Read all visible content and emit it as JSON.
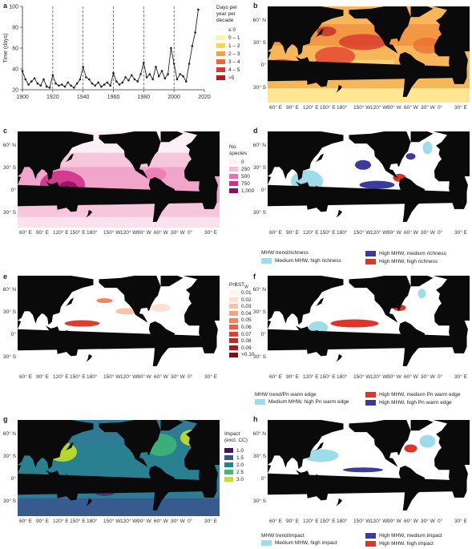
{
  "panels": {
    "a": "a",
    "b": "b",
    "c": "c",
    "d": "d",
    "e": "e",
    "f": "f",
    "g": "g",
    "h": "h"
  },
  "map_lat_labels": [
    "60° N",
    "30° S",
    "0°",
    "30° S"
  ],
  "map_lon_labels": [
    "60° E",
    "90° E",
    "120° E",
    "150° E",
    "180°",
    "150° W",
    "120° W",
    "90° W",
    "60° W",
    "30° W",
    "0°",
    "30° E"
  ],
  "legend_b": {
    "title": "Days per\nyear per\ndecade",
    "items": [
      {
        "label": "≤ 0",
        "color": "#fffbe8"
      },
      {
        "label": "0 – 1",
        "color": "#fff3a0"
      },
      {
        "label": "1 – 2",
        "color": "#f8d84a"
      },
      {
        "label": "2 – 3",
        "color": "#f3a43a"
      },
      {
        "label": "3 – 4",
        "color": "#e8692e"
      },
      {
        "label": "4 – 5",
        "color": "#d8372a"
      },
      {
        "label": ">5",
        "color": "#b01a20"
      }
    ]
  },
  "legend_c": {
    "title": "No.\nspecies",
    "items": [
      {
        "label": "0",
        "color": "#fdf0f5"
      },
      {
        "label": "250",
        "color": "#f7bcd6"
      },
      {
        "label": "500",
        "color": "#ee6fb0"
      },
      {
        "label": "750",
        "color": "#cf2f8c"
      },
      {
        "label": "1,000",
        "color": "#8c0f5a"
      }
    ]
  },
  "legend_e": {
    "title": "PrBST",
    "title_sub": "W",
    "items": [
      {
        "label": "0.01",
        "color": "#fff4ef"
      },
      {
        "label": "0.02",
        "color": "#fde0d2"
      },
      {
        "label": "0.03",
        "color": "#fbc2aa"
      },
      {
        "label": "0.04",
        "color": "#f8a283"
      },
      {
        "label": "0.05",
        "color": "#f3825f"
      },
      {
        "label": "0.06",
        "color": "#ea6046"
      },
      {
        "label": "0.07",
        "color": "#db3f33"
      },
      {
        "label": "0.08",
        "color": "#c4272a"
      },
      {
        "label": "0.09",
        "color": "#a81a22"
      },
      {
        "label": ">0.10",
        "color": "#7e0e18"
      }
    ]
  },
  "legend_g": {
    "title": "Impact\n(excl. CC)",
    "items": [
      {
        "label": "1.0",
        "color": "#46106f"
      },
      {
        "label": "1.5",
        "color": "#3a548c"
      },
      {
        "label": "2.0",
        "color": "#26838e"
      },
      {
        "label": "2.5",
        "color": "#3bbb74"
      },
      {
        "label": "3.0",
        "color": "#c8e020"
      }
    ]
  },
  "legend_d": {
    "title": "MHW trend/richness",
    "items": [
      {
        "label": "Medium MHW, high richness",
        "color": "#9fdcea"
      },
      {
        "label": "High MHW, medium richness",
        "color": "#3b3b9a"
      },
      {
        "label": "High MHW, high richness",
        "color": "#e0332a"
      }
    ]
  },
  "legend_f": {
    "title": "MHW trend/Pn warm edge",
    "items": [
      {
        "label": "Medium MHW, high Pn warm edge",
        "color": "#9fdcea"
      },
      {
        "label": "High MHW, medium Pn warm edge",
        "color": "#e0332a"
      },
      {
        "label": "High MHW, high Pn warm edge",
        "color": "#3b3b9a"
      }
    ]
  },
  "legend_h": {
    "title": "MHW trend/impact",
    "items": [
      {
        "label": "Medium MHW, high impact",
        "color": "#9fdcea"
      },
      {
        "label": "High MHW, medium impact",
        "color": "#3b3b9a"
      },
      {
        "label": "High MHW, high impact",
        "color": "#e0332a"
      }
    ]
  },
  "chart_data": {
    "type": "line",
    "ylabel": "Time (days)",
    "xlim": [
      1900,
      2020
    ],
    "ylim": [
      20,
      100
    ],
    "xticks": [
      1900,
      1920,
      1940,
      1960,
      1980,
      2000,
      2020
    ],
    "yticks": [
      20,
      40,
      60,
      80,
      100
    ],
    "decade_lines": [
      1900,
      1920,
      1940,
      1960,
      1980,
      2000
    ],
    "x": [
      1900,
      1902,
      1904,
      1906,
      1908,
      1910,
      1912,
      1914,
      1916,
      1918,
      1920,
      1922,
      1924,
      1926,
      1928,
      1930,
      1932,
      1934,
      1936,
      1938,
      1940,
      1942,
      1944,
      1946,
      1948,
      1950,
      1952,
      1954,
      1956,
      1958,
      1960,
      1962,
      1964,
      1966,
      1968,
      1970,
      1972,
      1974,
      1976,
      1978,
      1980,
      1982,
      1984,
      1986,
      1988,
      1990,
      1992,
      1994,
      1996,
      1998,
      2000,
      2002,
      2004,
      2006,
      2008,
      2010,
      2012,
      2014,
      2016
    ],
    "y": [
      38,
      30,
      25,
      28,
      31,
      26,
      24,
      30,
      23,
      22,
      34,
      26,
      24,
      25,
      23,
      27,
      24,
      22,
      26,
      30,
      42,
      32,
      30,
      26,
      24,
      27,
      23,
      25,
      27,
      24,
      36,
      28,
      25,
      27,
      32,
      29,
      34,
      30,
      28,
      35,
      46,
      32,
      35,
      30,
      42,
      33,
      38,
      31,
      35,
      60,
      45,
      30,
      35,
      33,
      28,
      45,
      62,
      75,
      97
    ]
  }
}
